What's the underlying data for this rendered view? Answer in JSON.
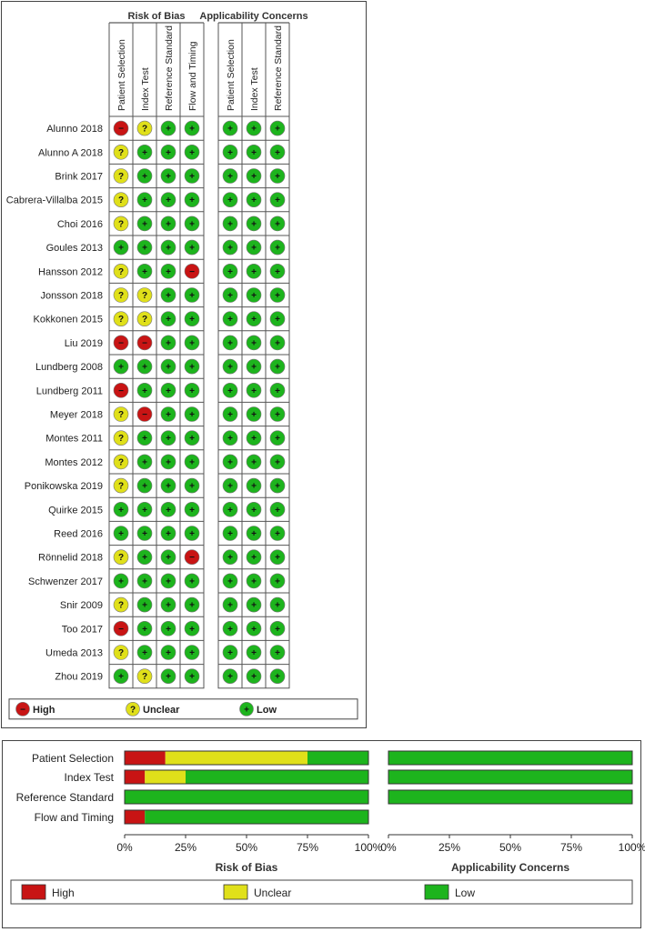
{
  "colors": {
    "high": "#c81414",
    "unclear": "#e0e01a",
    "low": "#1db41d",
    "grid": "#555555"
  },
  "legend": {
    "high": {
      "label": "High",
      "symbol": "−"
    },
    "unclear": {
      "label": "Unclear",
      "symbol": "?"
    },
    "low": {
      "label": "Low",
      "symbol": "+"
    }
  },
  "chart_data": [
    {
      "type": "table",
      "groups": [
        {
          "title": "Risk of Bias",
          "columns": [
            "Patient Selection",
            "Index Test",
            "Reference Standard",
            "Flow and Timing"
          ]
        },
        {
          "title": "Applicability Concerns",
          "columns": [
            "Patient Selection",
            "Index Test",
            "Reference Standard"
          ]
        }
      ],
      "rows": [
        {
          "study": "Alunno 2018",
          "rob": [
            "high",
            "unclear",
            "low",
            "low"
          ],
          "app": [
            "low",
            "low",
            "low"
          ]
        },
        {
          "study": "Alunno A 2018",
          "rob": [
            "unclear",
            "low",
            "low",
            "low"
          ],
          "app": [
            "low",
            "low",
            "low"
          ]
        },
        {
          "study": "Brink 2017",
          "rob": [
            "unclear",
            "low",
            "low",
            "low"
          ],
          "app": [
            "low",
            "low",
            "low"
          ]
        },
        {
          "study": "Cabrera-Villalba 2015",
          "rob": [
            "unclear",
            "low",
            "low",
            "low"
          ],
          "app": [
            "low",
            "low",
            "low"
          ]
        },
        {
          "study": "Choi 2016",
          "rob": [
            "unclear",
            "low",
            "low",
            "low"
          ],
          "app": [
            "low",
            "low",
            "low"
          ]
        },
        {
          "study": "Goules 2013",
          "rob": [
            "low",
            "low",
            "low",
            "low"
          ],
          "app": [
            "low",
            "low",
            "low"
          ]
        },
        {
          "study": "Hansson 2012",
          "rob": [
            "unclear",
            "low",
            "low",
            "high"
          ],
          "app": [
            "low",
            "low",
            "low"
          ]
        },
        {
          "study": "Jonsson 2018",
          "rob": [
            "unclear",
            "unclear",
            "low",
            "low"
          ],
          "app": [
            "low",
            "low",
            "low"
          ]
        },
        {
          "study": "Kokkonen 2015",
          "rob": [
            "unclear",
            "unclear",
            "low",
            "low"
          ],
          "app": [
            "low",
            "low",
            "low"
          ]
        },
        {
          "study": "Liu 2019",
          "rob": [
            "high",
            "high",
            "low",
            "low"
          ],
          "app": [
            "low",
            "low",
            "low"
          ]
        },
        {
          "study": "Lundberg 2008",
          "rob": [
            "low",
            "low",
            "low",
            "low"
          ],
          "app": [
            "low",
            "low",
            "low"
          ]
        },
        {
          "study": "Lundberg 2011",
          "rob": [
            "high",
            "low",
            "low",
            "low"
          ],
          "app": [
            "low",
            "low",
            "low"
          ]
        },
        {
          "study": "Meyer 2018",
          "rob": [
            "unclear",
            "high",
            "low",
            "low"
          ],
          "app": [
            "low",
            "low",
            "low"
          ]
        },
        {
          "study": "Montes 2011",
          "rob": [
            "unclear",
            "low",
            "low",
            "low"
          ],
          "app": [
            "low",
            "low",
            "low"
          ]
        },
        {
          "study": "Montes 2012",
          "rob": [
            "unclear",
            "low",
            "low",
            "low"
          ],
          "app": [
            "low",
            "low",
            "low"
          ]
        },
        {
          "study": "Ponikowska 2019",
          "rob": [
            "unclear",
            "low",
            "low",
            "low"
          ],
          "app": [
            "low",
            "low",
            "low"
          ]
        },
        {
          "study": "Quirke 2015",
          "rob": [
            "low",
            "low",
            "low",
            "low"
          ],
          "app": [
            "low",
            "low",
            "low"
          ]
        },
        {
          "study": "Reed 2016",
          "rob": [
            "low",
            "low",
            "low",
            "low"
          ],
          "app": [
            "low",
            "low",
            "low"
          ]
        },
        {
          "study": "Rönnelid 2018",
          "rob": [
            "unclear",
            "low",
            "low",
            "high"
          ],
          "app": [
            "low",
            "low",
            "low"
          ]
        },
        {
          "study": "Schwenzer 2017",
          "rob": [
            "low",
            "low",
            "low",
            "low"
          ],
          "app": [
            "low",
            "low",
            "low"
          ]
        },
        {
          "study": "Snir 2009",
          "rob": [
            "unclear",
            "low",
            "low",
            "low"
          ],
          "app": [
            "low",
            "low",
            "low"
          ]
        },
        {
          "study": "Too 2017",
          "rob": [
            "high",
            "low",
            "low",
            "low"
          ],
          "app": [
            "low",
            "low",
            "low"
          ]
        },
        {
          "study": "Umeda 2013",
          "rob": [
            "unclear",
            "low",
            "low",
            "low"
          ],
          "app": [
            "low",
            "low",
            "low"
          ]
        },
        {
          "study": "Zhou 2019",
          "rob": [
            "low",
            "unclear",
            "low",
            "low"
          ],
          "app": [
            "low",
            "low",
            "low"
          ]
        }
      ]
    },
    {
      "type": "bar",
      "orientation": "horizontal-stacked-percent",
      "categories": [
        "Patient Selection",
        "Index Test",
        "Reference Standard",
        "Flow and Timing"
      ],
      "panels": [
        {
          "title": "Risk of Bias",
          "series": [
            {
              "name": "High",
              "values": [
                16.7,
                8.3,
                0,
                8.3
              ]
            },
            {
              "name": "Unclear",
              "values": [
                58.3,
                16.7,
                0,
                0
              ]
            },
            {
              "name": "Low",
              "values": [
                25.0,
                75.0,
                100,
                91.7
              ]
            }
          ]
        },
        {
          "title": "Applicability Concerns",
          "categories": [
            "Patient Selection",
            "Index Test",
            "Reference Standard"
          ],
          "series": [
            {
              "name": "High",
              "values": [
                0,
                0,
                0
              ]
            },
            {
              "name": "Unclear",
              "values": [
                0,
                0,
                0
              ]
            },
            {
              "name": "Low",
              "values": [
                100,
                100,
                100
              ]
            }
          ]
        }
      ],
      "xticks": [
        "0%",
        "25%",
        "50%",
        "75%",
        "100%"
      ],
      "xlim": [
        0,
        100
      ],
      "legend": [
        "High",
        "Unclear",
        "Low"
      ]
    }
  ]
}
